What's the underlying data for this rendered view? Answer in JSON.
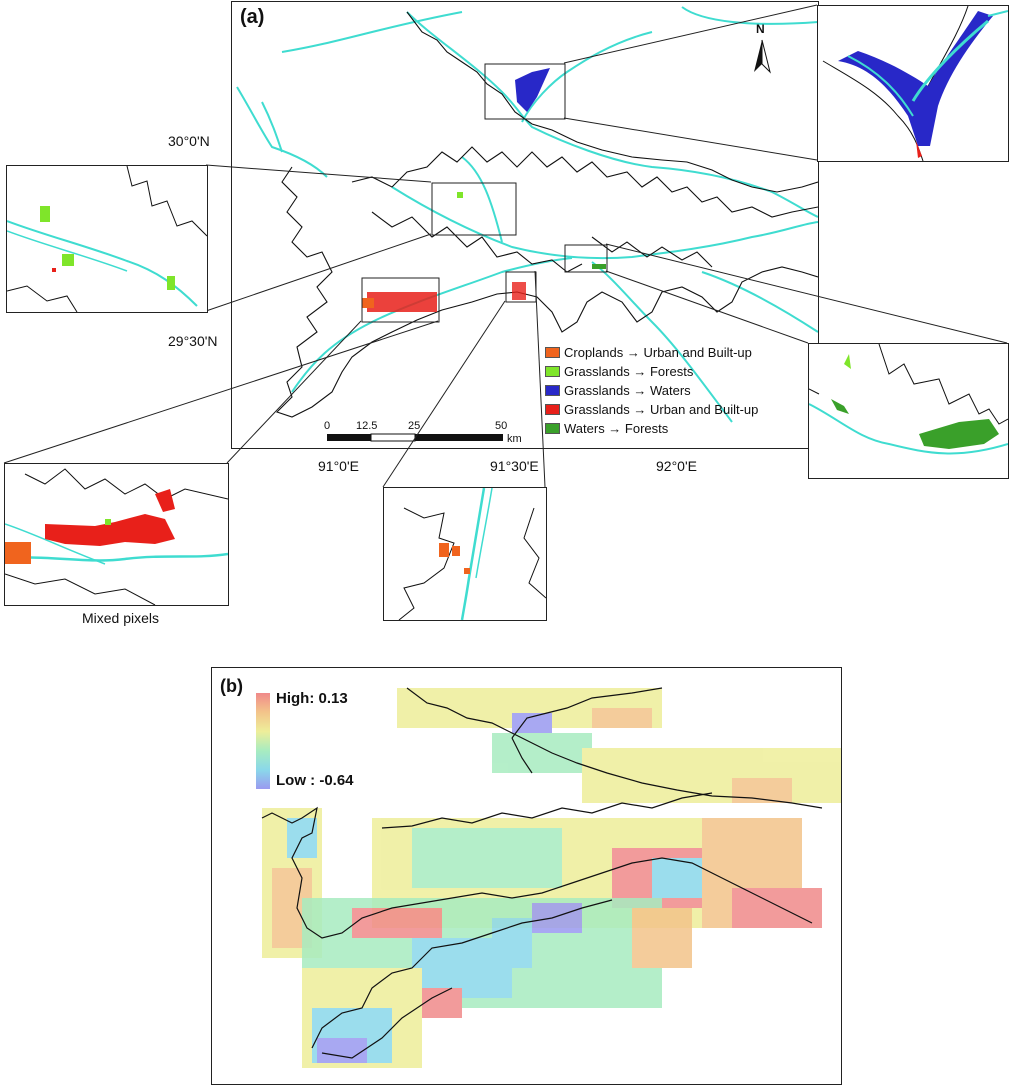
{
  "panel_a": {
    "label": "(a)",
    "north_label": "N",
    "lat_labels": [
      "30°0'N",
      "29°30'N"
    ],
    "lon_labels": [
      "91°0'E",
      "91°30'E",
      "92°0'E"
    ],
    "scale_labels": [
      "0",
      "12.5",
      "25",
      "50",
      "km"
    ],
    "legend": [
      {
        "label": "Croplands → Urban and Built-up",
        "color": "#f0641e"
      },
      {
        "label": "Grasslands → Forests",
        "color": "#7fe52a"
      },
      {
        "label": "Grasslands → Waters",
        "color": "#2828c8"
      },
      {
        "label": "Grasslands → Urban and Built-up",
        "color": "#e8201a"
      },
      {
        "label": "Waters → Forests",
        "color": "#3aa02a"
      }
    ],
    "inset_caption": "Mixed pixels"
  },
  "panel_b": {
    "label": "(b)",
    "colorbar_high": "High: 0.13",
    "colorbar_low": "Low : -0.64",
    "colorbar_stops": [
      "#f08a8a",
      "#f3c48a",
      "#eeee9a",
      "#a8ecc0",
      "#8ad8ea",
      "#9a9af0"
    ]
  },
  "colors": {
    "river": "#3fdcd0",
    "boundary": "#111111"
  }
}
